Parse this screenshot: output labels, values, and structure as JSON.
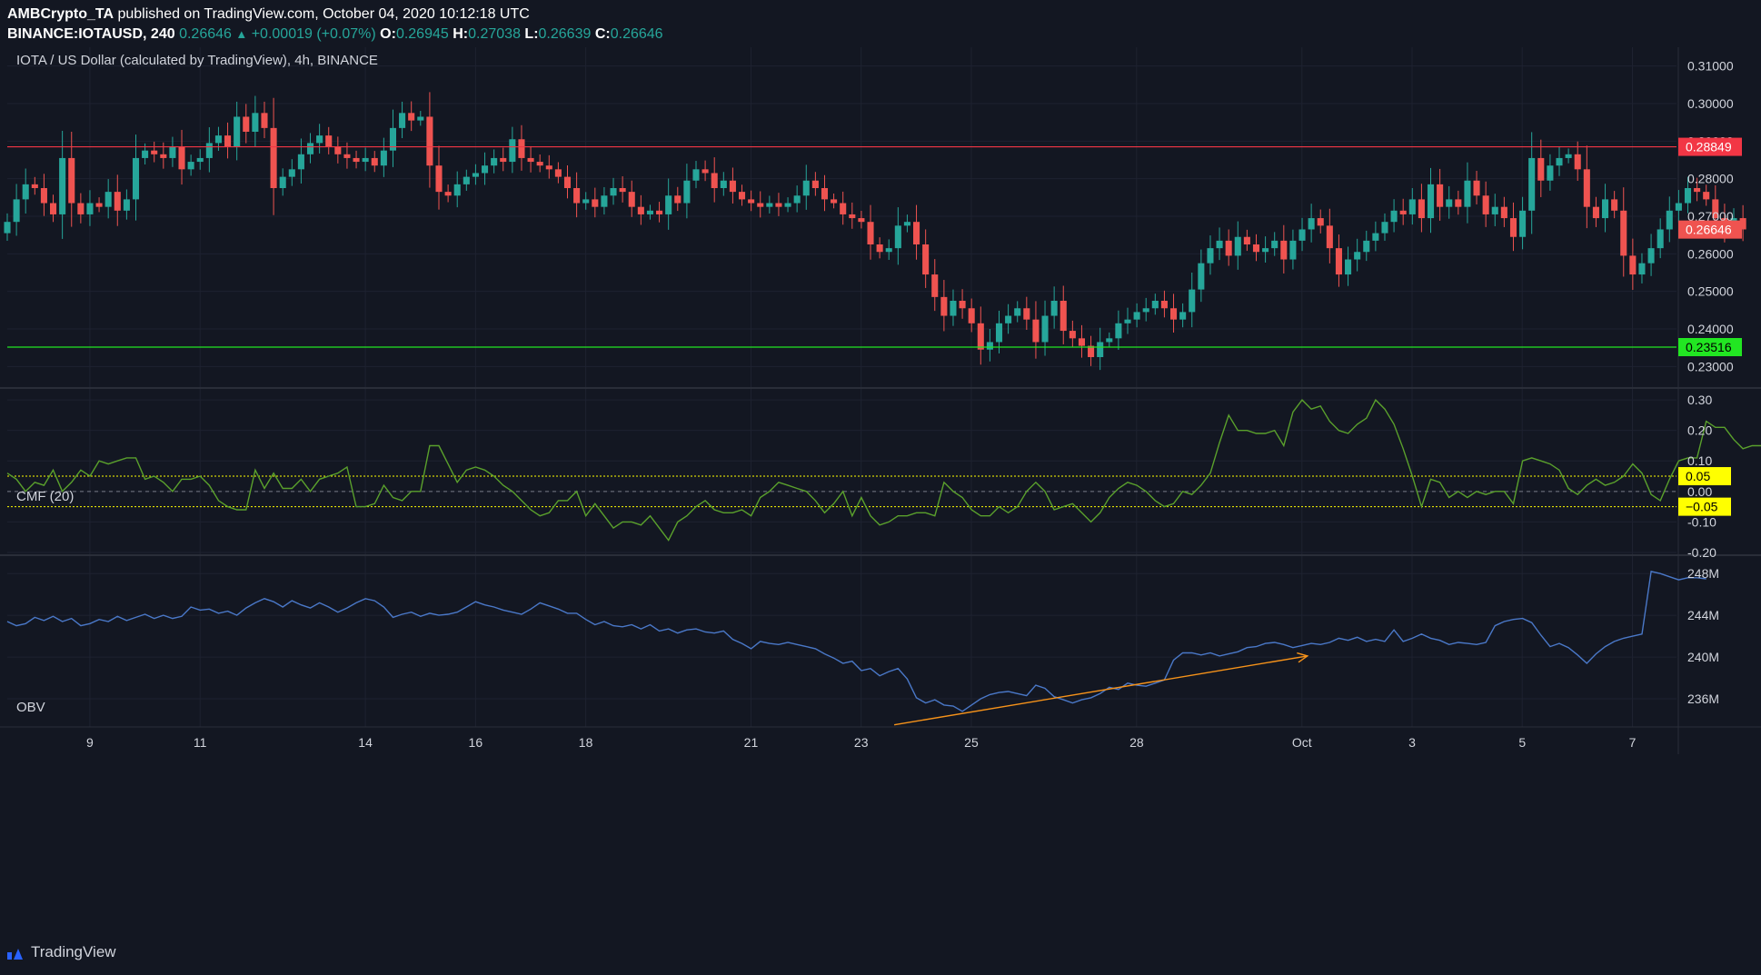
{
  "header": {
    "publisher": "AMBCrypto_TA",
    "published_text": "published on TradingView.com, October 04, 2020 10:12:18 UTC",
    "symbol": "BINANCE:IOTAUSD, 240",
    "last_price": "0.26646",
    "change": "+0.00019 (+0.07%)",
    "o_label": "O:",
    "o_value": "0.26945",
    "h_label": "H:",
    "h_value": "0.27038",
    "l_label": "L:",
    "l_value": "0.26639",
    "c_label": "C:",
    "c_value": "0.26646"
  },
  "footer": {
    "brand": "TradingView"
  },
  "colors": {
    "up": "#26a69a",
    "down": "#ef5350",
    "resistance": "#f23645",
    "support": "#22e622",
    "cmf": "#5aa02c",
    "cmf_band": "#ffff00",
    "obv": "#4a78c8",
    "trend": "#f7931a",
    "grid": "#1e2230",
    "background": "#131722"
  },
  "chart_data": [
    {
      "type": "candlestick",
      "title": "IOTA / US Dollar (calculated by TradingView), 4h, BINANCE",
      "ylim": [
        0.225,
        0.315
      ],
      "y_ticks": [
        "0.31000",
        "0.30000",
        "0.29000",
        "0.28000",
        "0.27000",
        "0.26000",
        "0.25000",
        "0.24000",
        "0.23000"
      ],
      "x_range_days": [
        7.5,
        37.8
      ],
      "x_ticks": [
        {
          "label": "9",
          "day": 9
        },
        {
          "label": "11",
          "day": 11
        },
        {
          "label": "14",
          "day": 14
        },
        {
          "label": "16",
          "day": 16
        },
        {
          "label": "18",
          "day": 18
        },
        {
          "label": "21",
          "day": 21
        },
        {
          "label": "23",
          "day": 23
        },
        {
          "label": "25",
          "day": 25
        },
        {
          "label": "28",
          "day": 28
        },
        {
          "label": "Oct",
          "day": 31
        },
        {
          "label": "3",
          "day": 33
        },
        {
          "label": "5",
          "day": 35
        },
        {
          "label": "7",
          "day": 37
        }
      ],
      "levels": [
        {
          "name": "resistance",
          "value": 0.28849,
          "label": "0.28849"
        },
        {
          "name": "support",
          "value": 0.23516,
          "label": "0.23516"
        }
      ],
      "last_price_label": "0.26646",
      "start_day": 7.5,
      "bar_days": 0.1667,
      "closes": [
        0.2685,
        0.2745,
        0.2785,
        0.2775,
        0.2735,
        0.2705,
        0.2855,
        0.2735,
        0.2705,
        0.2735,
        0.2725,
        0.2765,
        0.2715,
        0.2745,
        0.2855,
        0.2875,
        0.2865,
        0.2855,
        0.2885,
        0.2825,
        0.2845,
        0.2855,
        0.2895,
        0.2915,
        0.2885,
        0.2965,
        0.2925,
        0.2975,
        0.2935,
        0.2775,
        0.2805,
        0.2825,
        0.2865,
        0.2895,
        0.2915,
        0.2885,
        0.2865,
        0.2855,
        0.2845,
        0.2855,
        0.2835,
        0.2875,
        0.2935,
        0.2975,
        0.2955,
        0.2965,
        0.2835,
        0.2765,
        0.2755,
        0.2785,
        0.2805,
        0.2815,
        0.2835,
        0.2855,
        0.2845,
        0.2905,
        0.2855,
        0.2845,
        0.2835,
        0.2825,
        0.2805,
        0.2775,
        0.2735,
        0.2745,
        0.2725,
        0.2755,
        0.2775,
        0.2765,
        0.2725,
        0.2705,
        0.2715,
        0.2705,
        0.2755,
        0.2735,
        0.2795,
        0.2825,
        0.2815,
        0.2775,
        0.2795,
        0.2765,
        0.2745,
        0.2735,
        0.2725,
        0.2735,
        0.2725,
        0.2735,
        0.2755,
        0.2795,
        0.2775,
        0.2745,
        0.2735,
        0.2705,
        0.2695,
        0.2685,
        0.2625,
        0.2605,
        0.2615,
        0.2675,
        0.2685,
        0.2625,
        0.2545,
        0.2485,
        0.2435,
        0.2475,
        0.2455,
        0.2415,
        0.2345,
        0.2365,
        0.2415,
        0.2435,
        0.2455,
        0.2425,
        0.2365,
        0.2435,
        0.2475,
        0.2395,
        0.2375,
        0.2355,
        0.2325,
        0.2365,
        0.2375,
        0.2415,
        0.2425,
        0.2445,
        0.2455,
        0.2475,
        0.2455,
        0.2425,
        0.2445,
        0.2505,
        0.2575,
        0.2615,
        0.2635,
        0.2595,
        0.2645,
        0.2625,
        0.2605,
        0.2615,
        0.2635,
        0.2585,
        0.2635,
        0.2665,
        0.2695,
        0.2675,
        0.2615,
        0.2545,
        0.2585,
        0.2605,
        0.2635,
        0.2655,
        0.2685,
        0.2715,
        0.2705,
        0.2745,
        0.2695,
        0.2785,
        0.2725,
        0.2745,
        0.2725,
        0.2795,
        0.2755,
        0.2705,
        0.2725,
        0.2695,
        0.2645,
        0.2715,
        0.2855,
        0.2795,
        0.2835,
        0.2855,
        0.2865,
        0.2825,
        0.2725,
        0.2695,
        0.2745,
        0.2715,
        0.2595,
        0.2545,
        0.2575,
        0.2615,
        0.2665,
        0.2715,
        0.2735,
        0.2775,
        0.2765,
        0.2745,
        0.2695,
        0.2665,
        0.2695,
        0.2665
      ],
      "ohlc_note": "candles drawn from closes; open = previous close"
    },
    {
      "type": "line",
      "title": "CMF (20)",
      "ylim": [
        -0.2,
        0.33
      ],
      "y_ticks": [
        "0.30",
        "0.20",
        "0.10",
        "0.00",
        "-0.10",
        "-0.20"
      ],
      "bands": [
        {
          "value": 0.05,
          "label": "0.05"
        },
        {
          "value": -0.05,
          "label": "−0.05"
        }
      ],
      "values": [
        0.06,
        0.04,
        0.0,
        0.03,
        0.02,
        0.07,
        0.0,
        0.03,
        0.07,
        0.05,
        0.1,
        0.09,
        0.1,
        0.11,
        0.11,
        0.04,
        0.05,
        0.03,
        0.0,
        0.04,
        0.04,
        0.05,
        0.02,
        -0.03,
        -0.05,
        -0.06,
        -0.06,
        0.07,
        0.01,
        0.06,
        0.01,
        0.01,
        0.04,
        0.0,
        0.04,
        0.05,
        0.06,
        0.08,
        -0.05,
        -0.05,
        -0.04,
        0.02,
        -0.02,
        -0.03,
        0.0,
        0.0,
        0.15,
        0.15,
        0.09,
        0.03,
        0.07,
        0.08,
        0.07,
        0.05,
        0.02,
        0.0,
        -0.03,
        -0.06,
        -0.08,
        -0.07,
        -0.03,
        -0.03,
        0.0,
        -0.08,
        -0.04,
        -0.08,
        -0.12,
        -0.1,
        -0.1,
        -0.11,
        -0.08,
        -0.12,
        -0.16,
        -0.1,
        -0.08,
        -0.05,
        -0.03,
        -0.06,
        -0.07,
        -0.07,
        -0.06,
        -0.08,
        -0.02,
        0.0,
        0.03,
        0.02,
        0.01,
        0.0,
        -0.03,
        -0.07,
        -0.04,
        0.0,
        -0.08,
        -0.02,
        -0.08,
        -0.11,
        -0.1,
        -0.08,
        -0.08,
        -0.07,
        -0.07,
        -0.08,
        0.03,
        0.0,
        -0.02,
        -0.06,
        -0.08,
        -0.08,
        -0.05,
        -0.07,
        -0.05,
        0.0,
        0.03,
        0.0,
        -0.06,
        -0.05,
        -0.04,
        -0.07,
        -0.1,
        -0.07,
        -0.02,
        0.01,
        0.03,
        0.02,
        0.0,
        -0.03,
        -0.05,
        -0.04,
        0.0,
        -0.01,
        0.02,
        0.06,
        0.16,
        0.25,
        0.2,
        0.2,
        0.19,
        0.19,
        0.2,
        0.15,
        0.26,
        0.3,
        0.27,
        0.28,
        0.23,
        0.2,
        0.19,
        0.22,
        0.24,
        0.3,
        0.27,
        0.22,
        0.14,
        0.05,
        -0.05,
        0.04,
        0.03,
        -0.02,
        0.0,
        -0.02,
        0.0,
        -0.01,
        0.0,
        0.0,
        -0.04,
        0.1,
        0.11,
        0.1,
        0.09,
        0.07,
        0.01,
        -0.01,
        0.02,
        0.04,
        0.02,
        0.03,
        0.05,
        0.09,
        0.06,
        -0.01,
        -0.03,
        0.04,
        0.1,
        0.11,
        0.11,
        0.23,
        0.21,
        0.21,
        0.17,
        0.14,
        0.15,
        0.15,
        0.15,
        0.15
      ]
    },
    {
      "type": "line",
      "title": "OBV",
      "ylim": [
        233300000,
        249500000
      ],
      "y_ticks": [
        "248M",
        "244M",
        "240M",
        "236M"
      ],
      "values": [
        243400000,
        243000000,
        243200000,
        243800000,
        243500000,
        243900000,
        243400000,
        243700000,
        243000000,
        243200000,
        243600000,
        243400000,
        243900000,
        243500000,
        243800000,
        244100000,
        243700000,
        244000000,
        243700000,
        243900000,
        244800000,
        244500000,
        244600000,
        244200000,
        244400000,
        244000000,
        244700000,
        245200000,
        245600000,
        245300000,
        244800000,
        245400000,
        245000000,
        244700000,
        245200000,
        244800000,
        244300000,
        244700000,
        245200000,
        245600000,
        245400000,
        244800000,
        243800000,
        244100000,
        244300000,
        243900000,
        244200000,
        244000000,
        244100000,
        244300000,
        244800000,
        245300000,
        245000000,
        244800000,
        244500000,
        244300000,
        244100000,
        244600000,
        245200000,
        244900000,
        244600000,
        244200000,
        244200000,
        243600000,
        243100000,
        243400000,
        243000000,
        242900000,
        243100000,
        242700000,
        243100000,
        242500000,
        242700000,
        242300000,
        242600000,
        242700000,
        242400000,
        242300000,
        242500000,
        241700000,
        241300000,
        240800000,
        241500000,
        241300000,
        241200000,
        241400000,
        241200000,
        241000000,
        240800000,
        240300000,
        239900000,
        239400000,
        239600000,
        238700000,
        238900000,
        238200000,
        238600000,
        238900000,
        237900000,
        236100000,
        235600000,
        235900000,
        235400000,
        235300000,
        234800000,
        235400000,
        236000000,
        236400000,
        236600000,
        236700000,
        236500000,
        236300000,
        237300000,
        237000000,
        236200000,
        235900000,
        235600000,
        235900000,
        236100000,
        236500000,
        237100000,
        236900000,
        237500000,
        237300000,
        237200000,
        237500000,
        237800000,
        239700000,
        240400000,
        240400000,
        240200000,
        240400000,
        240100000,
        240300000,
        240500000,
        240900000,
        241000000,
        241300000,
        241400000,
        241200000,
        240900000,
        241100000,
        241300000,
        241200000,
        241400000,
        241800000,
        241600000,
        241900000,
        241500000,
        241700000,
        241500000,
        242600000,
        241500000,
        241800000,
        242200000,
        241800000,
        241600000,
        241200000,
        241400000,
        241300000,
        241200000,
        241400000,
        243000000,
        243400000,
        243600000,
        243700000,
        243300000,
        242100000,
        241000000,
        241300000,
        240900000,
        240200000,
        239400000,
        240300000,
        241000000,
        241500000,
        241800000,
        242000000,
        242200000,
        248200000,
        248000000,
        247700000,
        247400000,
        247600000,
        247600000,
        247500000
      ],
      "trendline": {
        "from": {
          "day": 23.6,
          "value": 233500000
        },
        "to": {
          "day": 31.1,
          "value": 240100000
        },
        "color": "#f7931a"
      }
    }
  ]
}
